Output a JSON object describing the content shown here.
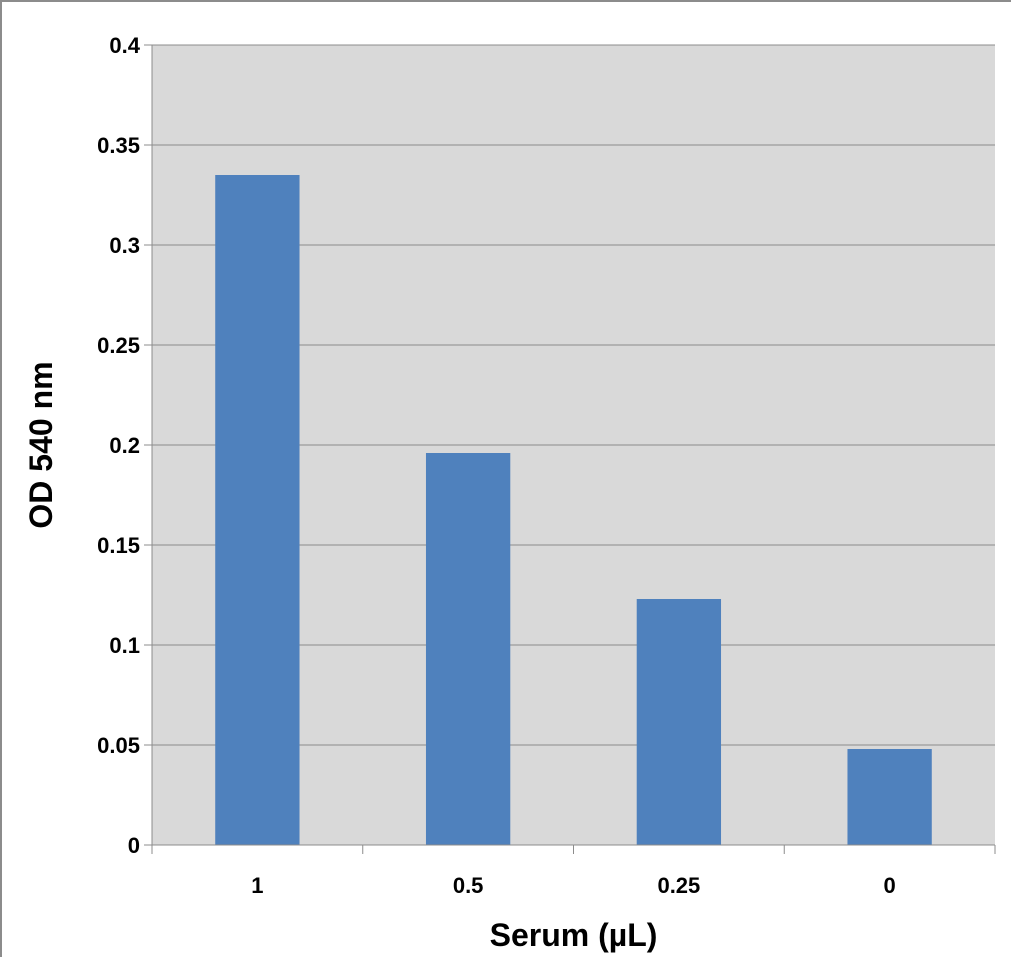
{
  "chart_data": {
    "type": "bar",
    "categories": [
      "1",
      "0.5",
      "0.25",
      "0"
    ],
    "values": [
      0.335,
      0.196,
      0.123,
      0.048
    ],
    "title": "",
    "xlabel": "Serum (µL)",
    "ylabel": "OD 540 nm",
    "ylim": [
      0,
      0.4
    ],
    "yticks": [
      "0",
      "0.05",
      "0.1",
      "0.15",
      "0.2",
      "0.25",
      "0.3",
      "0.35",
      "0.4"
    ],
    "grid": true,
    "legend": "none",
    "colors": {
      "bar": "#4f81bd",
      "plot_background": "#d9d9d9",
      "gridline": "#8c8c8c",
      "axis": "#8c8c8c"
    }
  }
}
